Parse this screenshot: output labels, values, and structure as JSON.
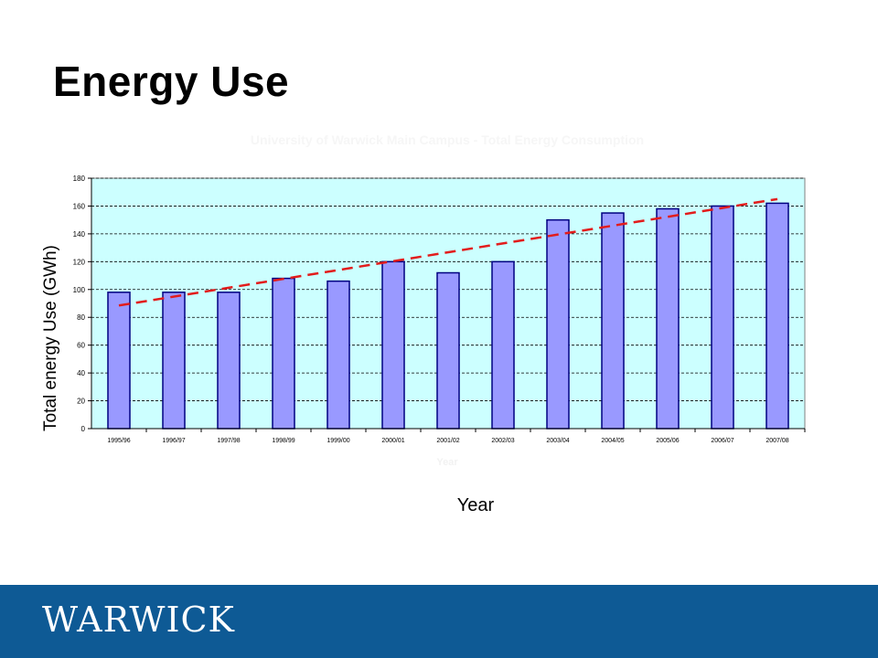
{
  "slide": {
    "title": "Energy Use",
    "y_axis_label": "Total energy Use (GWh)",
    "x_axis_label": "Year"
  },
  "footer": {
    "logo_text": "WARWICK",
    "color": "#0e5a95"
  },
  "chart_data": {
    "type": "bar",
    "title": "University of Warwick Main Campus - Total Energy Consumption",
    "xlabel": "Year",
    "ylabel": "",
    "categories": [
      "1995/96",
      "1996/97",
      "1997/98",
      "1998/99",
      "1999/00",
      "2000/01",
      "2001/02",
      "2002/03",
      "2003/04",
      "2004/05",
      "2005/06",
      "2006/07",
      "2007/08"
    ],
    "values": [
      98,
      98,
      98,
      108,
      106,
      120,
      112,
      120,
      150,
      155,
      158,
      160,
      162
    ],
    "ylim": [
      0,
      180
    ],
    "yticks": [
      0,
      20,
      40,
      60,
      80,
      100,
      120,
      140,
      160,
      180
    ],
    "grid": true,
    "trendline": {
      "style": "dashed",
      "color": "#e21c1c",
      "start": 88.5,
      "end": 165
    },
    "colors": {
      "bar_fill": "#9999ff",
      "bar_stroke": "#000080",
      "plot_bg": "#ccffff",
      "grid": "#000000"
    }
  }
}
